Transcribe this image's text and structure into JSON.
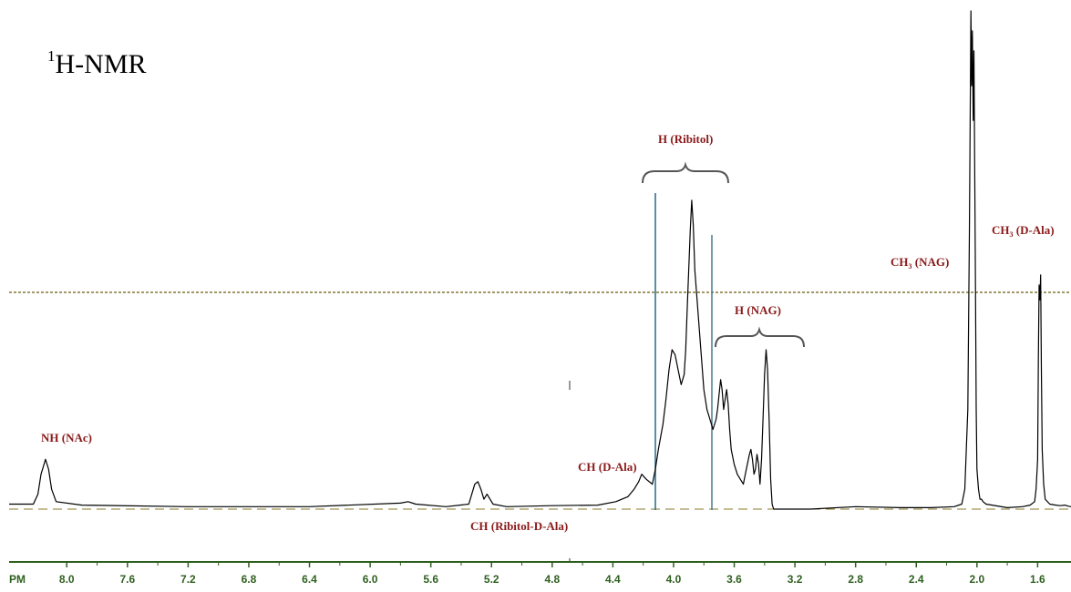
{
  "chart_data": {
    "type": "line",
    "title": "H-NMR",
    "title_superscript": "1",
    "xlabel": "PM",
    "ylabel": "",
    "x_axis_reversed": true,
    "xlim": [
      8.38,
      1.38
    ],
    "ylim": [
      0,
      100
    ],
    "ticks": [
      "8.0",
      "7.6",
      "7.2",
      "6.8",
      "6.4",
      "6.0",
      "5.6",
      "5.2",
      "4.8",
      "4.4",
      "4.0",
      "3.6",
      "3.2",
      "2.8",
      "2.4",
      "2.0",
      "1.6"
    ],
    "tick_values": [
      8.0,
      7.6,
      7.2,
      6.8,
      6.4,
      6.0,
      5.6,
      5.2,
      4.8,
      4.4,
      4.0,
      3.6,
      3.2,
      2.8,
      2.4,
      2.0,
      1.6
    ],
    "series": [
      {
        "x": [
          8.38,
          8.22,
          8.19,
          8.17,
          8.15,
          8.14,
          8.12,
          8.1,
          8.07,
          7.9,
          7.2,
          6.4,
          5.8,
          5.75,
          5.7,
          5.5,
          5.35,
          5.33,
          5.31,
          5.29,
          5.27,
          5.25,
          5.23,
          5.21,
          5.19,
          5.1,
          4.8,
          4.5,
          4.38,
          4.3,
          4.26,
          4.23,
          4.21,
          4.18,
          4.14,
          4.12,
          4.1,
          4.07,
          4.05,
          4.03,
          4.01,
          3.99,
          3.97,
          3.95,
          3.93,
          3.92,
          3.91,
          3.9,
          3.89,
          3.88,
          3.87,
          3.86,
          3.84,
          3.82,
          3.8,
          3.78,
          3.76,
          3.74,
          3.72,
          3.71,
          3.7,
          3.69,
          3.68,
          3.67,
          3.66,
          3.65,
          3.64,
          3.63,
          3.62,
          3.6,
          3.58,
          3.56,
          3.54,
          3.52,
          3.5,
          3.49,
          3.48,
          3.47,
          3.46,
          3.45,
          3.44,
          3.43,
          3.42,
          3.41,
          3.4,
          3.39,
          3.38,
          3.37,
          3.36,
          3.35,
          3.34,
          3.3,
          3.1,
          2.8,
          2.5,
          2.3,
          2.15,
          2.1,
          2.08,
          2.06,
          2.05,
          2.04,
          2.035,
          2.03,
          2.025,
          2.02,
          2.015,
          2.01,
          2.005,
          2.0,
          1.99,
          1.98,
          1.97,
          1.96,
          1.94,
          1.9,
          1.8,
          1.7,
          1.65,
          1.62,
          1.61,
          1.6,
          1.595,
          1.59,
          1.585,
          1.58,
          1.575,
          1.57,
          1.56,
          1.55,
          1.52,
          1.48,
          1.45,
          1.42,
          1.4,
          1.38
        ],
        "y": [
          1,
          1,
          3,
          7,
          9,
          10,
          8,
          4,
          1.5,
          0.8,
          0.5,
          0.5,
          1.2,
          1.5,
          1,
          0.5,
          1,
          3,
          5,
          5.5,
          4,
          2,
          3,
          2,
          1,
          0.5,
          0.7,
          0.8,
          1.5,
          2.5,
          4,
          5.5,
          7,
          6,
          5,
          8,
          12,
          17,
          22,
          28,
          32,
          31,
          28,
          25,
          27,
          32,
          40,
          48,
          56,
          62,
          57,
          48,
          40,
          32,
          24,
          20,
          18,
          16,
          18,
          20,
          23,
          26,
          24,
          20,
          22,
          24,
          21,
          16,
          12,
          9,
          7,
          6,
          5,
          8,
          11,
          12,
          10,
          7,
          8,
          11,
          9,
          5,
          10,
          18,
          27,
          32,
          28,
          18,
          6,
          1,
          0,
          0,
          0,
          0.5,
          0.3,
          0.3,
          0.5,
          1,
          4,
          20,
          55,
          100,
          85,
          96,
          78,
          92,
          70,
          45,
          20,
          8,
          4,
          2,
          2,
          1.5,
          1,
          0.8,
          0.3,
          0.5,
          0.8,
          1.5,
          4,
          10,
          30,
          45,
          42,
          47,
          28,
          12,
          5,
          2,
          1,
          0.8,
          0.7,
          0.8,
          0.6,
          0.5
        ]
      }
    ],
    "annotations": [
      {
        "label": "NH (NAc)",
        "x": 8.14
      },
      {
        "label": "CH (D-Ala)",
        "x": 4.23
      },
      {
        "label": "CH (Ribitol-D-Ala)",
        "x": 4.75
      },
      {
        "label": "H (Ribitol)",
        "x": 3.95
      },
      {
        "label": "H (NAG)",
        "x": 3.45
      },
      {
        "label": "CH",
        "subscript": "3",
        "suffix": " (NAG)",
        "x": 2.14
      },
      {
        "label": "CH",
        "subscript": "3",
        "suffix": " (D-Ala)",
        "x": 1.47
      }
    ],
    "grid": false,
    "legend": "none",
    "colors": {
      "trace": "#000000",
      "annotation": "#8b1a1a",
      "axis": "#2e5f1e",
      "reference_line": "#6b5a12",
      "marker_line": "#1f6b8a",
      "baseline": "#8a7a2a"
    }
  }
}
